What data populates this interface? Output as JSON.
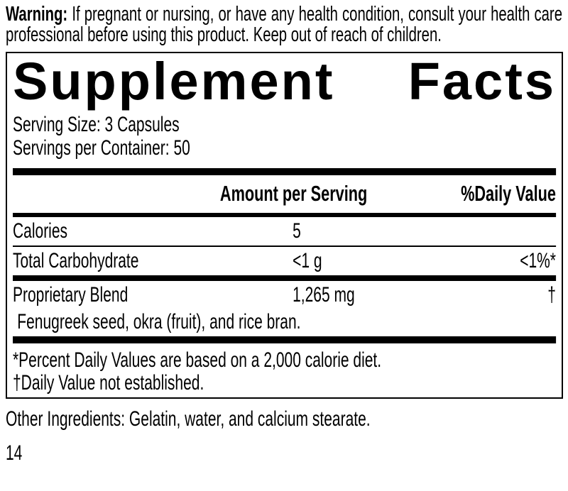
{
  "warning": {
    "label": "Warning:",
    "text": "If pregnant or nursing, or have any health condition, consult your health care professional before using this product. Keep out of reach of children."
  },
  "supplement_facts": {
    "title_left": "Supplement",
    "title_right": "Facts",
    "serving_size": "Serving Size: 3 Capsules",
    "servings_per_container": "Servings per Container: 50",
    "columns": {
      "amount_header": "Amount per Serving",
      "daily_value_header": "%Daily Value"
    },
    "rows": [
      {
        "label": "Calories",
        "amount": "5",
        "dv": ""
      },
      {
        "label": "Total Carbohydrate",
        "amount": "<1 g",
        "dv": "<1%*"
      },
      {
        "label": "Proprietary Blend",
        "amount": "1,265 mg",
        "dv": "†"
      }
    ],
    "blend_ingredients": "Fenugreek seed, okra (fruit), and rice bran.",
    "footnotes": [
      "*Percent Daily Values are based on a 2,000 calorie diet.",
      "†Daily Value not established."
    ]
  },
  "other_ingredients": "Other Ingredients: Gelatin, water, and calcium stearate.",
  "page_number": "14",
  "colors": {
    "text": "#000000",
    "background": "#ffffff"
  }
}
